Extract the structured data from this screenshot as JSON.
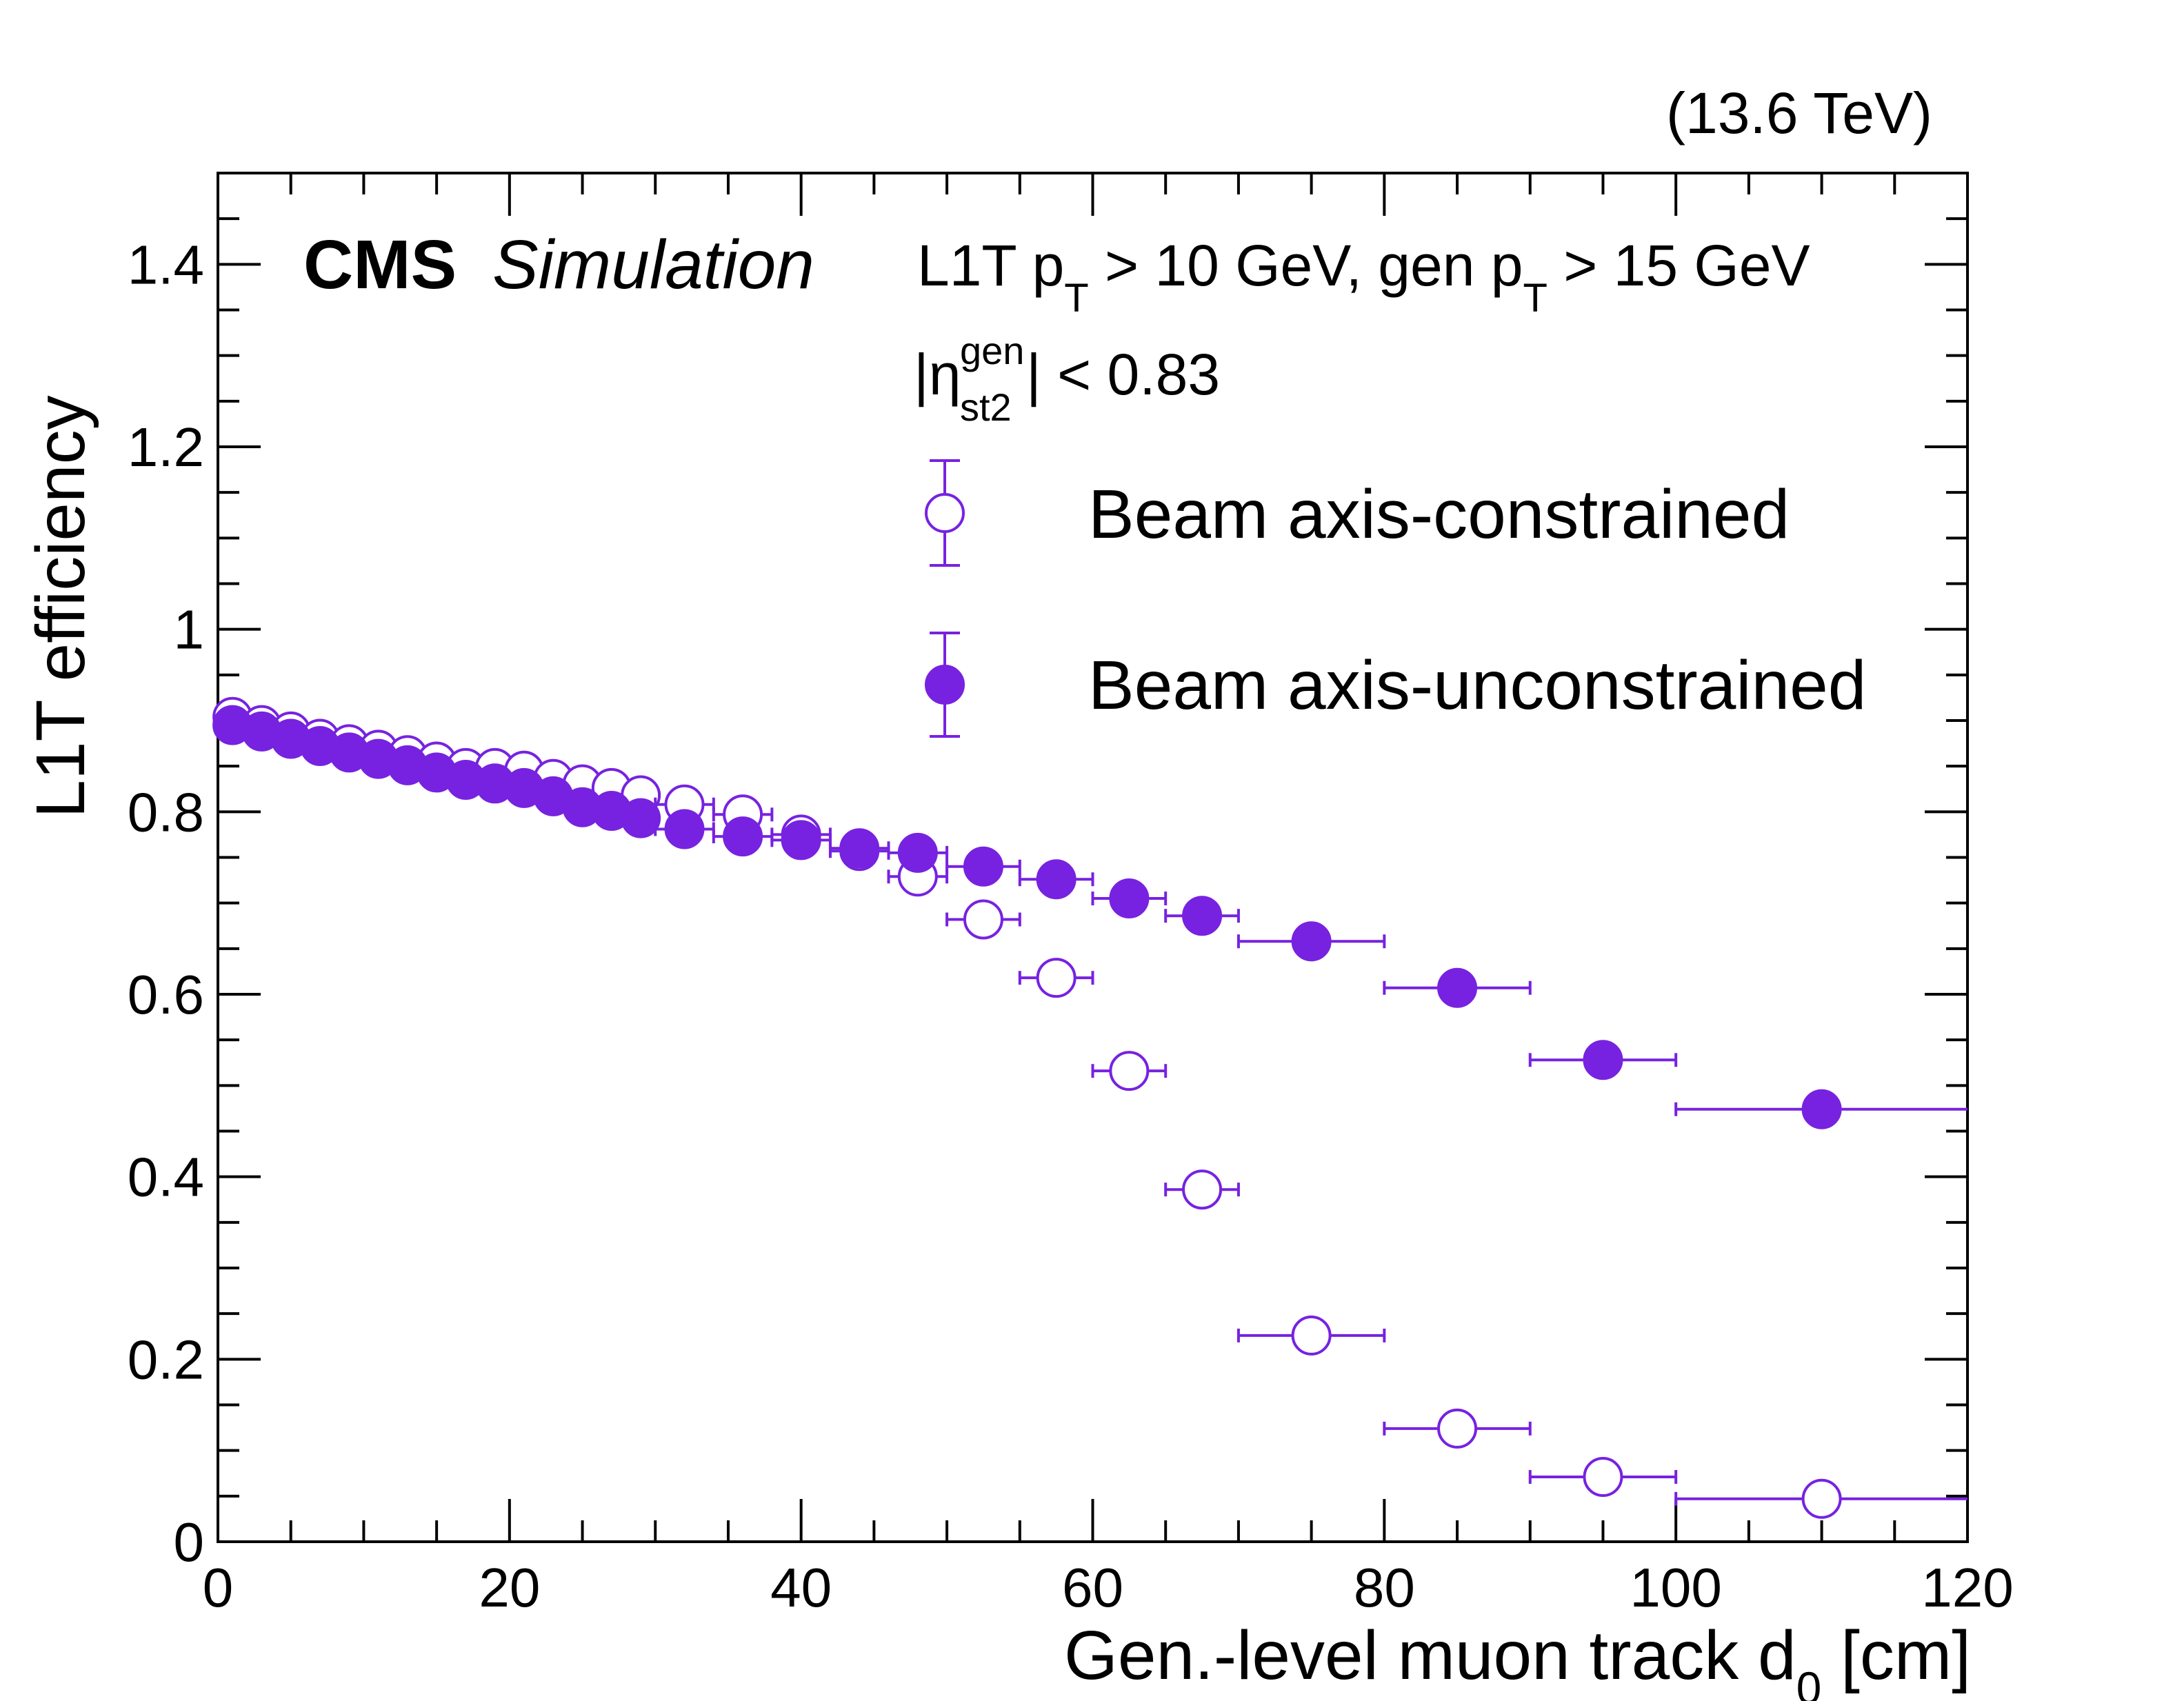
{
  "chart_data": {
    "type": "scatter",
    "energy_label": "(13.6 TeV)",
    "cms_label": "CMS",
    "simulation_label": "Simulation",
    "cut_text": {
      "l1t": "L1T p",
      "l1t_sub": "T",
      "l1t_thr": " > 10 GeV, gen p",
      "gen_sub": "T",
      "gen_thr": " > 15 GeV"
    },
    "eta_text": {
      "symbol": "|η",
      "sup": "gen",
      "sub": "st2",
      "cut": "| < 0.83"
    },
    "xlabel": "Gen.-level muon track d",
    "xlabel_sub": "0",
    "xlabel_unit": " [cm]",
    "ylabel": "L1T efficiency",
    "xlim": [
      0,
      120
    ],
    "ylim": [
      0,
      1.5
    ],
    "x_ticks": [
      0,
      20,
      40,
      60,
      80,
      100,
      120
    ],
    "x_tick_labels": [
      "0",
      "20",
      "40",
      "60",
      "80",
      "100",
      "120"
    ],
    "y_ticks": [
      0,
      0.2,
      0.4,
      0.6,
      0.8,
      1,
      1.2,
      1.4
    ],
    "y_tick_labels": [
      "0",
      "0.2",
      "0.4",
      "0.6",
      "0.8",
      "1",
      "1.2",
      "1.4"
    ],
    "series_color": "#7722e0",
    "series": [
      {
        "name": "Beam axis-constrained",
        "marker": "open-circle",
        "points": [
          {
            "x": 1,
            "xerr": 1,
            "y": 0.904
          },
          {
            "x": 3,
            "xerr": 1,
            "y": 0.895
          },
          {
            "x": 5,
            "xerr": 1,
            "y": 0.888
          },
          {
            "x": 7,
            "xerr": 1,
            "y": 0.88
          },
          {
            "x": 9,
            "xerr": 1,
            "y": 0.874
          },
          {
            "x": 11,
            "xerr": 1,
            "y": 0.868
          },
          {
            "x": 13,
            "xerr": 1,
            "y": 0.862
          },
          {
            "x": 15,
            "xerr": 1,
            "y": 0.855
          },
          {
            "x": 17,
            "xerr": 1,
            "y": 0.848
          },
          {
            "x": 19,
            "xerr": 1,
            "y": 0.848
          },
          {
            "x": 21,
            "xerr": 1,
            "y": 0.845
          },
          {
            "x": 23,
            "xerr": 1,
            "y": 0.836
          },
          {
            "x": 25,
            "xerr": 1,
            "y": 0.83
          },
          {
            "x": 27,
            "xerr": 1,
            "y": 0.826
          },
          {
            "x": 29,
            "xerr": 1,
            "y": 0.818
          },
          {
            "x": 32,
            "xerr": 2,
            "y": 0.808
          },
          {
            "x": 36,
            "xerr": 2,
            "y": 0.797
          },
          {
            "x": 40,
            "xerr": 2,
            "y": 0.775
          },
          {
            "x": 44,
            "xerr": 2,
            "y": 0.757
          },
          {
            "x": 48,
            "xerr": 2,
            "y": 0.729
          },
          {
            "x": 52.5,
            "xerr": 2.5,
            "y": 0.682
          },
          {
            "x": 57.5,
            "xerr": 2.5,
            "y": 0.618
          },
          {
            "x": 62.5,
            "xerr": 2.5,
            "y": 0.516
          },
          {
            "x": 67.5,
            "xerr": 2.5,
            "y": 0.386
          },
          {
            "x": 75,
            "xerr": 5,
            "y": 0.226
          },
          {
            "x": 85,
            "xerr": 5,
            "y": 0.124
          },
          {
            "x": 95,
            "xerr": 5,
            "y": 0.071
          },
          {
            "x": 110,
            "xerr": 10,
            "y": 0.047
          }
        ]
      },
      {
        "name": "Beam axis-unconstrained",
        "marker": "filled-circle",
        "points": [
          {
            "x": 1,
            "xerr": 1,
            "y": 0.895
          },
          {
            "x": 3,
            "xerr": 1,
            "y": 0.888
          },
          {
            "x": 5,
            "xerr": 1,
            "y": 0.88
          },
          {
            "x": 7,
            "xerr": 1,
            "y": 0.872
          },
          {
            "x": 9,
            "xerr": 1,
            "y": 0.865
          },
          {
            "x": 11,
            "xerr": 1,
            "y": 0.858
          },
          {
            "x": 13,
            "xerr": 1,
            "y": 0.851
          },
          {
            "x": 15,
            "xerr": 1,
            "y": 0.843
          },
          {
            "x": 17,
            "xerr": 1,
            "y": 0.835
          },
          {
            "x": 19,
            "xerr": 1,
            "y": 0.831
          },
          {
            "x": 21,
            "xerr": 1,
            "y": 0.826
          },
          {
            "x": 23,
            "xerr": 1,
            "y": 0.817
          },
          {
            "x": 25,
            "xerr": 1,
            "y": 0.805
          },
          {
            "x": 27,
            "xerr": 1,
            "y": 0.801
          },
          {
            "x": 29,
            "xerr": 1,
            "y": 0.793
          },
          {
            "x": 32,
            "xerr": 2,
            "y": 0.781
          },
          {
            "x": 36,
            "xerr": 2,
            "y": 0.773
          },
          {
            "x": 40,
            "xerr": 2,
            "y": 0.769
          },
          {
            "x": 44,
            "xerr": 2,
            "y": 0.76
          },
          {
            "x": 48,
            "xerr": 2,
            "y": 0.755
          },
          {
            "x": 52.5,
            "xerr": 2.5,
            "y": 0.74
          },
          {
            "x": 57.5,
            "xerr": 2.5,
            "y": 0.726
          },
          {
            "x": 62.5,
            "xerr": 2.5,
            "y": 0.705
          },
          {
            "x": 67.5,
            "xerr": 2.5,
            "y": 0.686
          },
          {
            "x": 75,
            "xerr": 5,
            "y": 0.658
          },
          {
            "x": 85,
            "xerr": 5,
            "y": 0.607
          },
          {
            "x": 95,
            "xerr": 5,
            "y": 0.528
          },
          {
            "x": 110,
            "xerr": 10,
            "y": 0.474
          }
        ]
      }
    ]
  }
}
